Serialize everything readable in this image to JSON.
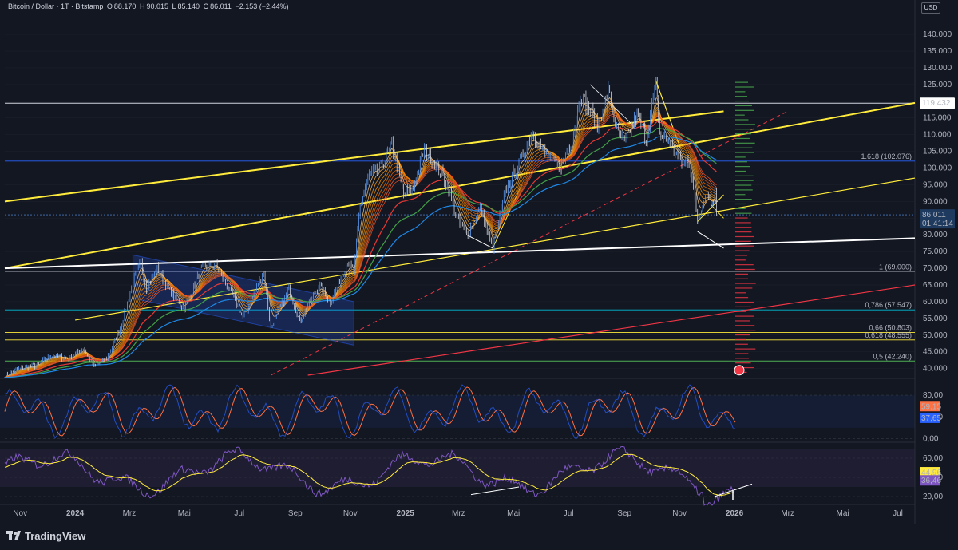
{
  "header": {
    "symbol": "Bitcoin / Dollar · 1T · Bitstamp",
    "open_label": "O",
    "open": "88.170",
    "high_label": "H",
    "high": "90.015",
    "low_label": "L",
    "low": "85.140",
    "close_label": "C",
    "close": "86.011",
    "change": "−2.153 (−2,44%)",
    "currency": "USD"
  },
  "footer": {
    "brand": "TradingView"
  },
  "colors": {
    "background": "#131722",
    "grid": "#1e222d",
    "up": "#5b9cf6",
    "yellow": "#ffeb3b",
    "white": "#ffffff",
    "red": "#f23645",
    "fib_blue": "#2962ff",
    "fib_cyan": "#00bcd4",
    "fib_green": "#4caf50",
    "osc_orange": "#ff7043",
    "osc_blue": "#2962ff",
    "rsi_purple": "#7e57c2",
    "rsi_yellow": "#ffeb3b"
  },
  "chart_data": [
    {
      "type": "line",
      "name_pane": "price",
      "y_ticks": [
        40000,
        45000,
        50000,
        55000,
        60000,
        65000,
        70000,
        75000,
        80000,
        85000,
        90000,
        95000,
        100000,
        105000,
        110000,
        115000,
        120000,
        125000,
        130000,
        135000,
        140000
      ],
      "y_tick_labels": [
        "40.000",
        "45.000",
        "50.000",
        "55.000",
        "60.000",
        "65.000",
        "70.000",
        "75.000",
        "80.000",
        "85.000",
        "90.000",
        "95.000",
        "100.000",
        "105.000",
        "110.000",
        "115.000",
        "120.000",
        "125.000",
        "130.000",
        "135.000",
        "140.000"
      ],
      "ylim": [
        38000,
        146000
      ],
      "x_ticks": [
        {
          "date": "2023-11-01",
          "label": "Nov"
        },
        {
          "date": "2024-01-01",
          "label": "2024"
        },
        {
          "date": "2024-03-01",
          "label": "Mrz"
        },
        {
          "date": "2024-05-01",
          "label": "Mai"
        },
        {
          "date": "2024-07-01",
          "label": "Jul"
        },
        {
          "date": "2024-09-01",
          "label": "Sep"
        },
        {
          "date": "2024-11-01",
          "label": "Nov"
        },
        {
          "date": "2025-01-01",
          "label": "2025"
        },
        {
          "date": "2025-03-01",
          "label": "Mrz"
        },
        {
          "date": "2025-05-01",
          "label": "Mai"
        },
        {
          "date": "2025-07-01",
          "label": "Jul"
        },
        {
          "date": "2025-09-01",
          "label": "Sep"
        },
        {
          "date": "2025-11-01",
          "label": "Nov"
        },
        {
          "date": "2026-01-01",
          "label": "2026"
        },
        {
          "date": "2026-03-01",
          "label": "Mrz"
        },
        {
          "date": "2026-05-01",
          "label": "Mai"
        },
        {
          "date": "2026-07-01",
          "label": "Jul"
        }
      ],
      "series": [
        {
          "values": [
            [
              "2023-10-15",
              38000
            ],
            [
              "2023-11-01",
              40000
            ],
            [
              "2023-11-20",
              41000
            ],
            [
              "2023-12-05",
              44000
            ],
            [
              "2023-12-25",
              43000
            ],
            [
              "2024-01-10",
              46000
            ],
            [
              "2024-01-22",
              40500
            ],
            [
              "2024-02-05",
              43000
            ],
            [
              "2024-02-20",
              52000
            ],
            [
              "2024-03-05",
              66000
            ],
            [
              "2024-03-14",
              72000
            ],
            [
              "2024-03-20",
              64000
            ],
            [
              "2024-04-01",
              70000
            ],
            [
              "2024-04-15",
              63000
            ],
            [
              "2024-05-01",
              58000
            ],
            [
              "2024-05-20",
              70000
            ],
            [
              "2024-06-05",
              71000
            ],
            [
              "2024-06-25",
              61000
            ],
            [
              "2024-07-05",
              55000
            ],
            [
              "2024-07-28",
              69000
            ],
            [
              "2024-08-05",
              52000
            ],
            [
              "2024-08-25",
              64000
            ],
            [
              "2024-09-06",
              54000
            ],
            [
              "2024-09-27",
              65000
            ],
            [
              "2024-10-10",
              60000
            ],
            [
              "2024-10-29",
              72000
            ],
            [
              "2024-11-05",
              69000
            ],
            [
              "2024-11-12",
              89000
            ],
            [
              "2024-11-22",
              98000
            ],
            [
              "2024-12-05",
              100000
            ],
            [
              "2024-12-17",
              107000
            ],
            [
              "2024-12-30",
              92000
            ],
            [
              "2025-01-10",
              94000
            ],
            [
              "2025-01-22",
              106000
            ],
            [
              "2025-02-01",
              102000
            ],
            [
              "2025-02-15",
              96000
            ],
            [
              "2025-03-01",
              84000
            ],
            [
              "2025-03-10",
              80000
            ],
            [
              "2025-03-25",
              88000
            ],
            [
              "2025-04-08",
              76000
            ],
            [
              "2025-04-22",
              93000
            ],
            [
              "2025-05-10",
              103000
            ],
            [
              "2025-05-22",
              111000
            ],
            [
              "2025-06-05",
              104000
            ],
            [
              "2025-06-22",
              100000
            ],
            [
              "2025-07-05",
              109000
            ],
            [
              "2025-07-14",
              122000
            ],
            [
              "2025-07-25",
              117000
            ],
            [
              "2025-08-02",
              113000
            ],
            [
              "2025-08-14",
              123000
            ],
            [
              "2025-08-25",
              110000
            ],
            [
              "2025-09-01",
              108000
            ],
            [
              "2025-09-15",
              116000
            ],
            [
              "2025-09-25",
              109000
            ],
            [
              "2025-10-06",
              125000
            ],
            [
              "2025-10-10",
              110000
            ],
            [
              "2025-10-20",
              108000
            ],
            [
              "2025-11-05",
              101000
            ],
            [
              "2025-11-12",
              103000
            ],
            [
              "2025-11-21",
              84000
            ],
            [
              "2025-11-28",
              91000
            ],
            [
              "2025-12-03",
              93000
            ],
            [
              "2025-12-06",
              89000
            ],
            [
              "2025-12-10",
              92000
            ],
            [
              "2025-12-12",
              86011
            ]
          ]
        }
      ],
      "price_labels": [
        {
          "value": 119432,
          "text": "119.432",
          "style": "white-box"
        },
        {
          "value": 86011,
          "text": "86.011",
          "sub": "01:41:14",
          "style": "current"
        }
      ],
      "fib_levels": [
        {
          "value": 102076,
          "text": "1.618 (102.076)",
          "color": "#2962ff"
        },
        {
          "value": 69000,
          "text": "1 (69.000)",
          "color": "#787b86"
        },
        {
          "value": 57547,
          "text": "0,786 (57.547)",
          "color": "#00bcd4"
        },
        {
          "value": 50803,
          "text": "0,66 (50.803)",
          "color": "#ffeb3b"
        },
        {
          "value": 48555,
          "text": "0,618 (48.555)",
          "color": "#ffeb3b"
        },
        {
          "value": 42240,
          "text": "0,5 (42.240)",
          "color": "#4caf50"
        }
      ]
    },
    {
      "type": "line",
      "name_pane": "stoch_rsi",
      "ylim": [
        -5,
        105
      ],
      "y_ticks": [
        0,
        40,
        80
      ],
      "y_tick_labels": [
        "0,00",
        "40,00",
        "80,00"
      ],
      "last_values": [
        {
          "value": 59.15,
          "text": "59,15",
          "color": "#ff7043"
        },
        {
          "value": 37.65,
          "text": "37,65",
          "color": "#2962ff"
        }
      ]
    },
    {
      "type": "line",
      "name_pane": "rsi",
      "ylim": [
        15,
        75
      ],
      "y_ticks": [
        20,
        40,
        60
      ],
      "y_tick_labels": [
        "20,00",
        "40,00",
        "60,00"
      ],
      "last_values": [
        {
          "value": 44.96,
          "text": "44,96",
          "color": "#ffeb3b"
        },
        {
          "value": 36.46,
          "text": "36,46",
          "color": "#7e57c2"
        }
      ]
    }
  ]
}
